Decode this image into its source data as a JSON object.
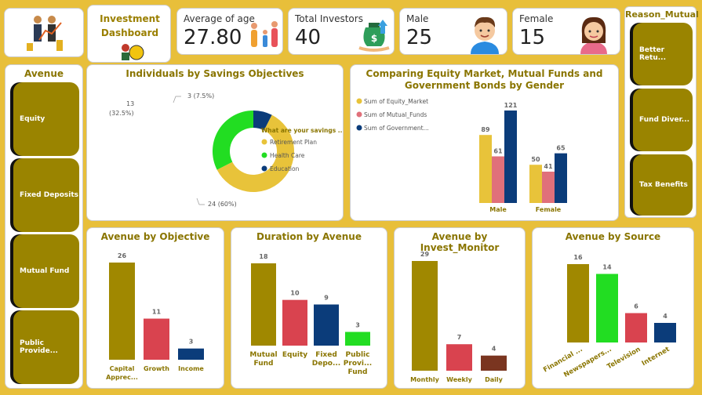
{
  "header": {
    "title": "Investment Dashboard"
  },
  "kpis": {
    "age": {
      "label": "Average of age",
      "value": "27.80"
    },
    "investors": {
      "label": "Total Investors",
      "value": "40"
    },
    "male": {
      "label": "Male",
      "value": "25"
    },
    "female": {
      "label": "Female",
      "value": "15"
    }
  },
  "avenue_slicer": {
    "title": "Avenue",
    "items": [
      "Equity",
      "Fixed Deposits",
      "Mutual Fund",
      "Public Provide..."
    ]
  },
  "reason_slicer": {
    "title": "Reason_Mutual",
    "items": [
      "Better Retu...",
      "Fund Diver...",
      "Tax Benefits"
    ]
  },
  "colors": {
    "olive": "#a08800",
    "red": "#d9434f",
    "navy": "#0b3c7a",
    "green": "#22dd22",
    "brown": "#7a3520",
    "yellow": "#e8c33a",
    "pink": "#e0707a"
  },
  "chart_data": [
    {
      "type": "pie",
      "title": "Individuals by Savings Objectives",
      "legend_title": "What are your savings ...",
      "categories": [
        "Retirement Plan",
        "Health Care",
        "Education"
      ],
      "values": [
        24,
        13,
        3
      ],
      "labels": [
        "24 (60%)",
        "13\n(32.5%)",
        "3 (7.5%)"
      ]
    },
    {
      "type": "bar",
      "title": "Comparing Equity Market, Mutual Funds and Government Bonds by Gender",
      "categories": [
        "Male",
        "Female"
      ],
      "series": [
        {
          "name": "Sum of Equity_Market",
          "values": [
            89,
            50
          ]
        },
        {
          "name": "Sum of Mutual_Funds",
          "values": [
            61,
            41
          ]
        },
        {
          "name": "Sum of Government...",
          "values": [
            121,
            65
          ]
        }
      ]
    },
    {
      "type": "bar",
      "title": "Avenue by Objective",
      "categories": [
        "Capital Apprec...",
        "Growth",
        "Income"
      ],
      "values": [
        26,
        11,
        3
      ]
    },
    {
      "type": "bar",
      "title": "Duration by Avenue",
      "categories": [
        "Mutual Fund",
        "Equity",
        "Fixed Depo...",
        "Public Provi... Fund"
      ],
      "values": [
        18,
        10,
        9,
        3
      ]
    },
    {
      "type": "bar",
      "title": "Avenue by Invest_Monitor",
      "categories": [
        "Monthly",
        "Weekly",
        "Daily"
      ],
      "values": [
        29,
        7,
        4
      ]
    },
    {
      "type": "bar",
      "title": "Avenue by Source",
      "categories": [
        "Financial ...",
        "Newspapers...",
        "Television",
        "Internet"
      ],
      "values": [
        16,
        14,
        6,
        4
      ]
    }
  ]
}
